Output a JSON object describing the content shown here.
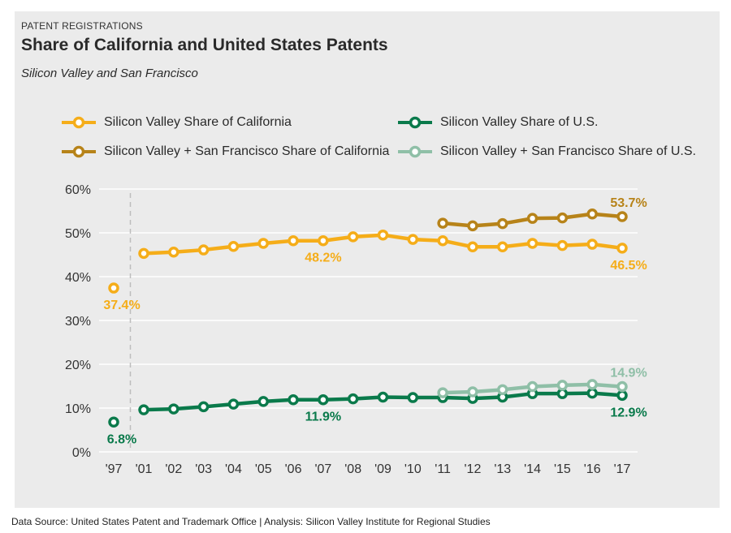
{
  "header": {
    "eyebrow": "PATENT REGISTRATIONS",
    "title": "Share of California and United States Patents",
    "subtitle": "Silicon Valley and San Francisco"
  },
  "footer": {
    "text": "Data Source: United States Patent and Trademark Office | Analysis: Silicon Valley Institute for Regional Studies"
  },
  "colors": {
    "sv_ca": "#f5ad19",
    "svsf_ca": "#b78319",
    "sv_us": "#0a7a4b",
    "svsf_us": "#8fbfa7",
    "grid": "#ffffff",
    "panel": "#ebebeb"
  },
  "chart_data": {
    "type": "line",
    "categories": [
      "'97",
      "'01",
      "'02",
      "'03",
      "'04",
      "'05",
      "'06",
      "'07",
      "'08",
      "'09",
      "'10",
      "'11",
      "'12",
      "'13",
      "'14",
      "'15",
      "'16",
      "'17"
    ],
    "ylim": [
      0,
      60
    ],
    "yticks": [
      "0%",
      "10%",
      "20%",
      "30%",
      "40%",
      "50%",
      "60%"
    ],
    "grid": "horizontal",
    "legend_position": "top",
    "break_after_category": "'97",
    "series": [
      {
        "name": "Silicon Valley Share of California",
        "key": "sv_ca",
        "values": [
          37.4,
          45.3,
          45.6,
          46.1,
          46.9,
          47.6,
          48.2,
          48.2,
          49.1,
          49.5,
          48.5,
          48.2,
          46.8,
          46.8,
          47.6,
          47.1,
          47.4,
          46.5
        ],
        "labels": [
          {
            "index": 0,
            "text": "37.4%",
            "pos": "below"
          },
          {
            "index": 7,
            "text": "48.2%",
            "pos": "below"
          },
          {
            "index": 17,
            "text": "46.5%",
            "pos": "below"
          }
        ]
      },
      {
        "name": "Silicon Valley + San Francisco Share of California",
        "key": "svsf_ca",
        "values": [
          null,
          null,
          null,
          null,
          null,
          null,
          null,
          null,
          null,
          null,
          null,
          52.2,
          51.6,
          52.1,
          53.3,
          53.4,
          54.3,
          53.7
        ],
        "labels": [
          {
            "index": 17,
            "text": "53.7%",
            "pos": "above"
          }
        ]
      },
      {
        "name": "Silicon Valley Share of U.S.",
        "key": "sv_us",
        "values": [
          6.8,
          9.6,
          9.8,
          10.3,
          10.9,
          11.5,
          11.9,
          11.9,
          12.1,
          12.5,
          12.4,
          12.4,
          12.2,
          12.5,
          13.3,
          13.3,
          13.4,
          12.9
        ],
        "labels": [
          {
            "index": 0,
            "text": "6.8%",
            "pos": "below"
          },
          {
            "index": 7,
            "text": "11.9%",
            "pos": "below"
          },
          {
            "index": 17,
            "text": "12.9%",
            "pos": "below"
          }
        ]
      },
      {
        "name": "Silicon Valley + San Francisco Share of U.S.",
        "key": "svsf_us",
        "values": [
          null,
          null,
          null,
          null,
          null,
          null,
          null,
          null,
          null,
          null,
          null,
          13.5,
          13.7,
          14.2,
          14.9,
          15.2,
          15.4,
          14.9
        ],
        "labels": [
          {
            "index": 17,
            "text": "14.9%",
            "pos": "above"
          }
        ]
      }
    ]
  }
}
